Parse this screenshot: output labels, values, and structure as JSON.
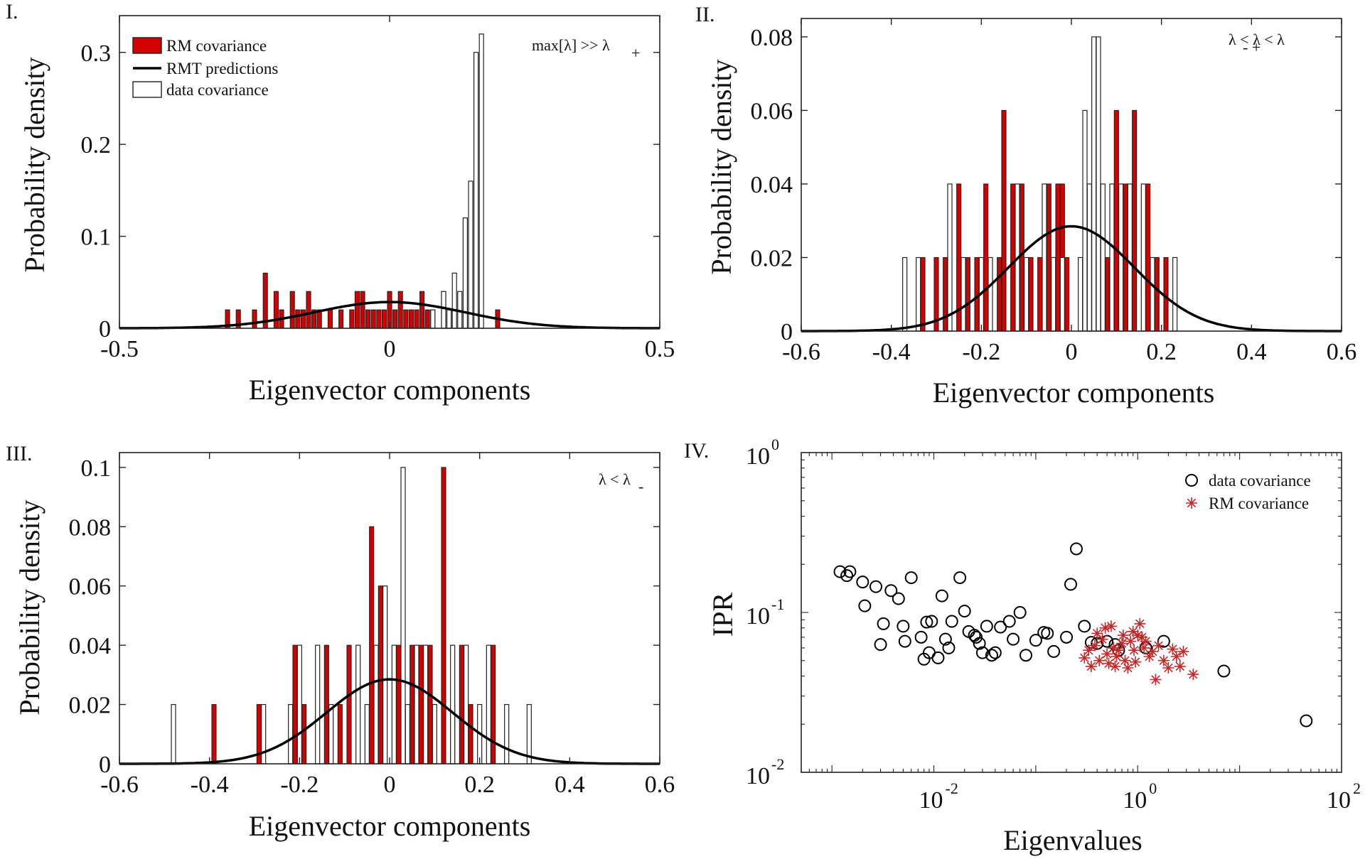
{
  "figure": {
    "colors": {
      "rm": "#d40000",
      "data_edge": "#222222",
      "curve": "#000000",
      "star": "#c62828"
    }
  },
  "chart_data": [
    {
      "panel_label": "I.",
      "type": "bar",
      "title": "",
      "xlabel": "Eigenvector components",
      "ylabel": "Probability density",
      "xlim": [
        -0.5,
        0.5
      ],
      "ylim": [
        0,
        0.34
      ],
      "xticks": [
        -0.5,
        0,
        0.5
      ],
      "xtick_labels": [
        "-0.5",
        "0",
        "0.5"
      ],
      "yticks": [
        0,
        0.1,
        0.2,
        0.3
      ],
      "ytick_labels": [
        "0",
        "0.1",
        "0.2",
        "0.3"
      ],
      "annotation": {
        "main": "max[λ] >> λ",
        "sub": "+"
      },
      "legend": {
        "position": "top-left",
        "items": [
          {
            "label": "RM covariance",
            "kind": "bar-red"
          },
          {
            "label": "RMT predictions",
            "kind": "line"
          },
          {
            "label": "data covariance",
            "kind": "bar-white"
          }
        ]
      },
      "bin_width": 0.004,
      "curve_sigma": 0.14,
      "series": [
        {
          "name": "RM covariance",
          "x": [
            -0.3,
            -0.28,
            -0.25,
            -0.23,
            -0.21,
            -0.2,
            -0.18,
            -0.17,
            -0.16,
            -0.15,
            -0.14,
            -0.13,
            -0.11,
            -0.09,
            -0.07,
            -0.06,
            -0.05,
            -0.04,
            -0.03,
            -0.02,
            -0.01,
            0.0,
            0.01,
            0.02,
            0.03,
            0.04,
            0.05,
            0.06,
            0.07,
            0.08,
            0.1,
            0.11,
            0.16,
            0.2
          ],
          "values": [
            0.02,
            0.02,
            0.02,
            0.06,
            0.04,
            0.02,
            0.04,
            0.02,
            0.02,
            0.04,
            0.02,
            0.02,
            0.02,
            0.02,
            0.02,
            0.04,
            0.04,
            0.02,
            0.02,
            0.02,
            0.02,
            0.04,
            0.02,
            0.04,
            0.02,
            0.02,
            0.02,
            0.04,
            0.02,
            0.02,
            0.04,
            0.02,
            0.02,
            0.02
          ]
        },
        {
          "name": "data covariance",
          "x": [
            0.08,
            0.1,
            0.11,
            0.12,
            0.13,
            0.14,
            0.15,
            0.16,
            0.17
          ],
          "values": [
            0.02,
            0.04,
            0.02,
            0.06,
            0.04,
            0.12,
            0.16,
            0.3,
            0.32
          ]
        },
        {
          "name": "RMT predictions",
          "x": [],
          "values": []
        }
      ]
    },
    {
      "panel_label": "II.",
      "type": "bar",
      "title": "",
      "xlabel": "Eigenvector components",
      "ylabel": "Probability density",
      "xlim": [
        -0.6,
        0.6
      ],
      "ylim": [
        0,
        0.085
      ],
      "xticks": [
        -0.6,
        -0.4,
        -0.2,
        0,
        0.2,
        0.4,
        0.6
      ],
      "xtick_labels": [
        "-0.6",
        "-0.4",
        "-0.2",
        "0",
        "0.2",
        "0.4",
        "0.6"
      ],
      "yticks": [
        0,
        0.02,
        0.04,
        0.06,
        0.08
      ],
      "ytick_labels": [
        "0",
        "0.02",
        "0.04",
        "0.06",
        "0.08"
      ],
      "annotation": {
        "main": "λ < λ < λ",
        "sub": "- +"
      },
      "bin_width": 0.006,
      "curve_sigma": 0.14,
      "series": [
        {
          "name": "RM covariance",
          "x": [
            -0.33,
            -0.3,
            -0.28,
            -0.25,
            -0.23,
            -0.21,
            -0.19,
            -0.16,
            -0.15,
            -0.13,
            -0.11,
            -0.09,
            -0.07,
            -0.05,
            -0.04,
            -0.03,
            -0.02,
            -0.01,
            0.05,
            0.08,
            0.1,
            0.12,
            0.14,
            0.17,
            0.19,
            0.21
          ],
          "values": [
            0.02,
            0.02,
            0.02,
            0.04,
            0.02,
            0.02,
            0.04,
            0.02,
            0.06,
            0.04,
            0.04,
            0.02,
            0.02,
            0.04,
            0.02,
            0.04,
            0.04,
            0.02,
            0.06,
            0.02,
            0.06,
            0.04,
            0.06,
            0.04,
            0.02,
            0.02
          ]
        },
        {
          "name": "data covariance",
          "x": [
            -0.37,
            -0.34,
            -0.27,
            -0.24,
            -0.2,
            -0.18,
            -0.12,
            -0.1,
            -0.06,
            -0.04,
            -0.02,
            0.02,
            0.03,
            0.04,
            0.05,
            0.06,
            0.07,
            0.09,
            0.11,
            0.13,
            0.16,
            0.18,
            0.23
          ],
          "values": [
            0.02,
            0.02,
            0.04,
            0.02,
            0.02,
            0.02,
            0.04,
            0.02,
            0.04,
            0.02,
            0.02,
            0.02,
            0.06,
            0.04,
            0.08,
            0.08,
            0.04,
            0.04,
            0.04,
            0.04,
            0.04,
            0.02,
            0.02
          ]
        },
        {
          "name": "RMT predictions",
          "x": [],
          "values": []
        }
      ]
    },
    {
      "panel_label": "III.",
      "type": "bar",
      "title": "",
      "xlabel": "Eigenvector components",
      "ylabel": "Probability density",
      "xlim": [
        -0.6,
        0.6
      ],
      "ylim": [
        0,
        0.105
      ],
      "xticks": [
        -0.6,
        -0.4,
        -0.2,
        0,
        0.2,
        0.4,
        0.6
      ],
      "xtick_labels": [
        "-0.6",
        "-0.4",
        "-0.2",
        "0",
        "0.2",
        "0.4",
        "0.6"
      ],
      "yticks": [
        0,
        0.02,
        0.04,
        0.06,
        0.08,
        0.1
      ],
      "ytick_labels": [
        "0",
        "0.02",
        "0.04",
        "0.06",
        "0.08",
        "0.1"
      ],
      "annotation": {
        "main": "λ < λ",
        "sub": "-"
      },
      "bin_width": 0.006,
      "curve_sigma": 0.14,
      "series": [
        {
          "name": "RM covariance",
          "x": [
            -0.39,
            -0.29,
            -0.21,
            -0.19,
            -0.14,
            -0.11,
            -0.09,
            -0.04,
            -0.02,
            0.02,
            0.05,
            0.07,
            0.09,
            0.12,
            0.14,
            0.16,
            0.18,
            0.23
          ],
          "values": [
            0.02,
            0.02,
            0.04,
            0.02,
            0.04,
            0.02,
            0.04,
            0.08,
            0.06,
            0.04,
            0.04,
            0.04,
            0.04,
            0.1,
            0.02,
            0.04,
            0.02,
            0.04
          ]
        },
        {
          "name": "data covariance",
          "x": [
            -0.48,
            -0.28,
            -0.22,
            -0.2,
            -0.16,
            -0.13,
            -0.07,
            -0.05,
            -0.03,
            -0.01,
            0.01,
            0.03,
            0.04,
            0.06,
            0.08,
            0.1,
            0.14,
            0.17,
            0.2,
            0.22,
            0.26,
            0.31
          ],
          "values": [
            0.02,
            0.02,
            0.02,
            0.04,
            0.04,
            0.02,
            0.04,
            0.02,
            0.04,
            0.06,
            0.04,
            0.1,
            0.02,
            0.04,
            0.04,
            0.02,
            0.04,
            0.04,
            0.02,
            0.04,
            0.02,
            0.02
          ]
        },
        {
          "name": "RMT predictions",
          "x": [],
          "values": []
        }
      ]
    },
    {
      "panel_label": "IV.",
      "type": "scatter",
      "title": "",
      "xlabel": "Eigenvalues",
      "ylabel": "IPR",
      "xscale": "log",
      "yscale": "log",
      "xlim": [
        0.0005,
        100
      ],
      "ylim": [
        0.01,
        1
      ],
      "xticks": [
        0.01,
        1,
        100
      ],
      "xtick_labels": [
        {
          "base": "10",
          "exp": "-2"
        },
        {
          "base": "10",
          "exp": "0"
        },
        {
          "base": "10",
          "exp": "2"
        }
      ],
      "yticks": [
        0.01,
        0.1,
        1
      ],
      "ytick_labels": [
        {
          "base": "10",
          "exp": "-2"
        },
        {
          "base": "10",
          "exp": "-1"
        },
        {
          "base": "10",
          "exp": "0"
        }
      ],
      "legend": {
        "position": "top-right",
        "items": [
          {
            "label": "data covariance",
            "kind": "circle"
          },
          {
            "label": "RM covariance",
            "kind": "star"
          }
        ]
      },
      "series": [
        {
          "name": "data covariance",
          "x": [
            0.0012,
            0.0014,
            0.0015,
            0.002,
            0.0021,
            0.0027,
            0.003,
            0.0032,
            0.0038,
            0.0045,
            0.005,
            0.0052,
            0.006,
            0.0075,
            0.008,
            0.0085,
            0.009,
            0.0095,
            0.011,
            0.012,
            0.013,
            0.014,
            0.015,
            0.018,
            0.02,
            0.022,
            0.025,
            0.026,
            0.028,
            0.03,
            0.033,
            0.037,
            0.04,
            0.045,
            0.055,
            0.06,
            0.07,
            0.08,
            0.1,
            0.12,
            0.13,
            0.15,
            0.2,
            0.22,
            0.25,
            0.3,
            0.35,
            0.4,
            0.5,
            0.6,
            0.65,
            1.2,
            1.8,
            7,
            45
          ],
          "values": [
            0.18,
            0.17,
            0.18,
            0.155,
            0.11,
            0.145,
            0.063,
            0.085,
            0.137,
            0.122,
            0.082,
            0.066,
            0.165,
            0.07,
            0.051,
            0.087,
            0.056,
            0.088,
            0.052,
            0.127,
            0.068,
            0.06,
            0.088,
            0.165,
            0.102,
            0.076,
            0.072,
            0.07,
            0.064,
            0.056,
            0.082,
            0.054,
            0.056,
            0.081,
            0.088,
            0.068,
            0.1,
            0.054,
            0.067,
            0.075,
            0.074,
            0.057,
            0.07,
            0.15,
            0.25,
            0.082,
            0.065,
            0.064,
            0.066,
            0.063,
            0.058,
            0.06,
            0.066,
            0.043,
            0.021
          ]
        },
        {
          "name": "RM covariance",
          "x": [
            0.3,
            0.33,
            0.35,
            0.38,
            0.4,
            0.42,
            0.45,
            0.48,
            0.5,
            0.52,
            0.55,
            0.58,
            0.6,
            0.62,
            0.65,
            0.7,
            0.72,
            0.75,
            0.8,
            0.85,
            0.9,
            0.92,
            0.95,
            1.0,
            1.05,
            1.1,
            1.15,
            1.2,
            1.3,
            1.4,
            1.5,
            1.6,
            1.8,
            2.0,
            2.2,
            2.4,
            2.6,
            2.8,
            3.5
          ],
          "values": [
            0.052,
            0.058,
            0.046,
            0.062,
            0.074,
            0.05,
            0.068,
            0.08,
            0.055,
            0.048,
            0.082,
            0.06,
            0.046,
            0.053,
            0.058,
            0.064,
            0.072,
            0.05,
            0.045,
            0.066,
            0.076,
            0.058,
            0.049,
            0.072,
            0.085,
            0.07,
            0.06,
            0.066,
            0.053,
            0.057,
            0.038,
            0.062,
            0.05,
            0.045,
            0.059,
            0.053,
            0.046,
            0.057,
            0.041
          ]
        }
      ]
    }
  ]
}
